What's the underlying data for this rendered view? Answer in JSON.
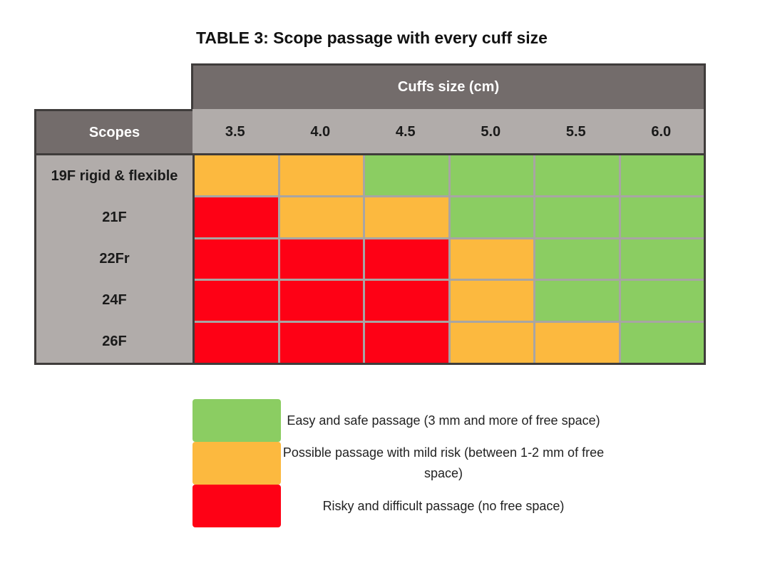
{
  "title": "TABLE 3: Scope passage with every cuff size",
  "header": {
    "cuffs_label": "Cuffs size (cm)",
    "scopes_label": "Scopes"
  },
  "sizes": [
    "3.5",
    "4.0",
    "4.5",
    "5.0",
    "5.5",
    "6.0"
  ],
  "rows": [
    {
      "label": "19F rigid & flexible",
      "cells": [
        "mild",
        "mild",
        "easy",
        "easy",
        "easy",
        "easy"
      ]
    },
    {
      "label": "21F",
      "cells": [
        "risky",
        "mild",
        "mild",
        "easy",
        "easy",
        "easy"
      ]
    },
    {
      "label": "22Fr",
      "cells": [
        "risky",
        "risky",
        "risky",
        "mild",
        "easy",
        "easy"
      ]
    },
    {
      "label": "24F",
      "cells": [
        "risky",
        "risky",
        "risky",
        "mild",
        "easy",
        "easy"
      ]
    },
    {
      "label": "26F",
      "cells": [
        "risky",
        "risky",
        "risky",
        "mild",
        "mild",
        "easy"
      ]
    }
  ],
  "colors": {
    "easy": "#8bcd62",
    "mild": "#fcb93f",
    "risky": "#fe0115",
    "header_dark": "#736c6b",
    "header_light": "#b1acaa"
  },
  "legend": [
    {
      "key": "easy",
      "text": "Easy and safe passage (3 mm and more of free space)"
    },
    {
      "key": "mild",
      "text": "Possible passage with mild risk (between 1-2 mm of free space)"
    },
    {
      "key": "risky",
      "text": "Risky and difficult passage (no free space)"
    }
  ]
}
